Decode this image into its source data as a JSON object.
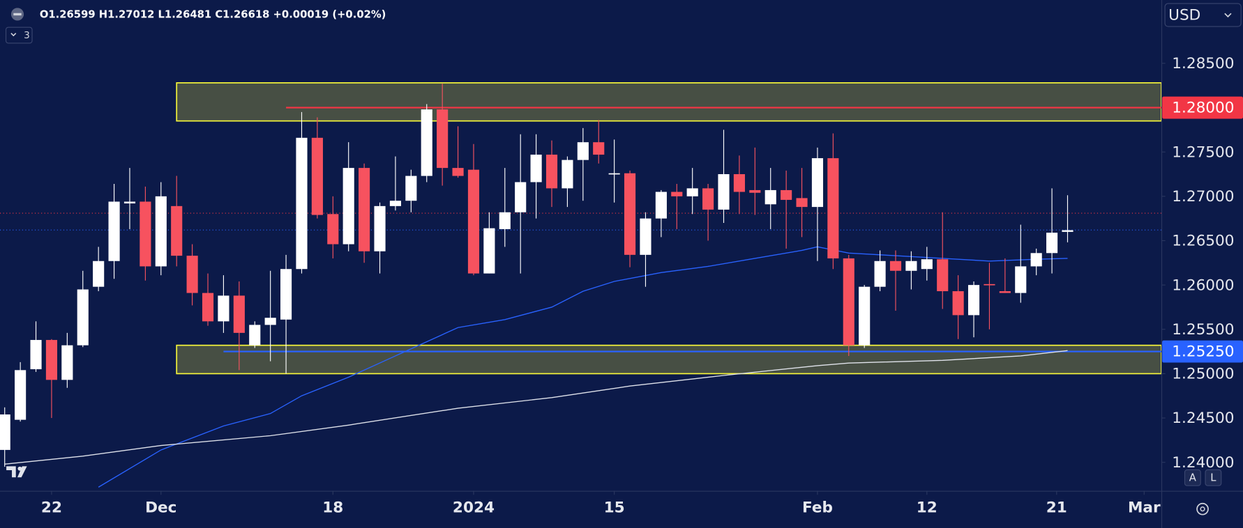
{
  "ui": {
    "header": "O1.26599 H1.27012 L1.26481 C1.26618 +0.00019 (+0.02%)",
    "indicators": "3",
    "currency": "USD",
    "buttons": [
      "A",
      "L"
    ]
  },
  "chart_data": {
    "type": "candlestick",
    "up_color": "#ffffff",
    "down_color": "#f7525f",
    "x": [
      0,
      1,
      2,
      3,
      4,
      5,
      6,
      7,
      8,
      9,
      10,
      11,
      12,
      13,
      14,
      15,
      16,
      17,
      18,
      19,
      20,
      21,
      22,
      23,
      24,
      25,
      26,
      27,
      28,
      29,
      30,
      31,
      32,
      33,
      34,
      35,
      36,
      37,
      38,
      39,
      40,
      41,
      42,
      43,
      44,
      45,
      46,
      47,
      48,
      49,
      50,
      51,
      52,
      53,
      54,
      55,
      56,
      57,
      58,
      59,
      60,
      61,
      62,
      63,
      64,
      65,
      66,
      67,
      68
    ],
    "open": [
      1.2414,
      1.2448,
      1.2505,
      1.2538,
      1.2493,
      1.2532,
      1.2598,
      1.2627,
      1.2692,
      1.2694,
      1.2621,
      1.2689,
      1.2633,
      1.2591,
      1.2559,
      1.2588,
      1.2532,
      1.2555,
      1.2561,
      1.2618,
      1.2766,
      1.268,
      1.2646,
      1.2732,
      1.2638,
      1.2689,
      1.2695,
      1.2723,
      1.2798,
      1.2732,
      1.273,
      1.2613,
      1.2663,
      1.2682,
      1.2716,
      1.2747,
      1.2709,
      1.2741,
      1.2761,
      1.2725,
      1.2726,
      1.2634,
      1.2675,
      1.2705,
      1.27,
      1.2709,
      1.2685,
      1.2725,
      1.2707,
      1.2691,
      1.2707,
      1.2698,
      1.2688,
      1.2743,
      1.263,
      1.2532,
      1.2598,
      1.2627,
      1.2616,
      1.2618,
      1.2629,
      1.2593,
      1.2566,
      1.2601,
      1.2593,
      1.2591,
      1.2621,
      1.2636,
      1.26599
    ],
    "high": [
      1.2462,
      1.2513,
      1.2559,
      1.2539,
      1.2546,
      1.2616,
      1.2643,
      1.2714,
      1.2732,
      1.2711,
      1.2716,
      1.2723,
      1.2646,
      1.2613,
      1.2611,
      1.2604,
      1.2559,
      1.2616,
      1.2634,
      1.2795,
      1.2789,
      1.27,
      1.2761,
      1.2737,
      1.2693,
      1.2745,
      1.273,
      1.2804,
      1.2827,
      1.2779,
      1.2759,
      1.2682,
      1.2732,
      1.277,
      1.277,
      1.2763,
      1.2745,
      1.2777,
      1.2786,
      1.2764,
      1.2729,
      1.2682,
      1.2707,
      1.2714,
      1.2732,
      1.2714,
      1.2775,
      1.2746,
      1.2755,
      1.2732,
      1.2729,
      1.2732,
      1.2755,
      1.2771,
      1.2634,
      1.26,
      1.2639,
      1.2639,
      1.2638,
      1.2643,
      1.2682,
      1.2611,
      1.2604,
      1.2625,
      1.263,
      1.2668,
      1.2641,
      1.2709,
      1.27012
    ],
    "low": [
      1.2395,
      1.2446,
      1.2502,
      1.245,
      1.2484,
      1.253,
      1.2593,
      1.2607,
      1.2663,
      1.2605,
      1.2611,
      1.2621,
      1.2577,
      1.2554,
      1.2546,
      1.2504,
      1.2529,
      1.2514,
      1.25,
      1.2613,
      1.2675,
      1.263,
      1.2638,
      1.2625,
      1.2613,
      1.2684,
      1.2682,
      1.2716,
      1.2712,
      1.2721,
      1.2611,
      1.2613,
      1.2643,
      1.2613,
      1.2675,
      1.2688,
      1.2688,
      1.2695,
      1.2737,
      1.2693,
      1.262,
      1.2598,
      1.2654,
      1.2663,
      1.268,
      1.265,
      1.267,
      1.268,
      1.2679,
      1.2663,
      1.2641,
      1.2654,
      1.2627,
      1.2618,
      1.252,
      1.2529,
      1.2593,
      1.2571,
      1.2595,
      1.2605,
      1.2573,
      1.2539,
      1.2541,
      1.255,
      1.2591,
      1.258,
      1.2611,
      1.2613,
      1.26481
    ],
    "close": [
      1.2454,
      1.2504,
      1.2538,
      1.2493,
      1.2532,
      1.2595,
      1.2627,
      1.2694,
      1.2694,
      1.2621,
      1.27,
      1.2633,
      1.2591,
      1.2559,
      1.2588,
      1.2546,
      1.2555,
      1.2563,
      1.2618,
      1.2766,
      1.2679,
      1.2646,
      1.2732,
      1.2638,
      1.2689,
      1.2695,
      1.2723,
      1.2798,
      1.2732,
      1.2723,
      1.2613,
      1.2664,
      1.2682,
      1.2716,
      1.2747,
      1.2709,
      1.2741,
      1.2761,
      1.2747,
      1.2726,
      1.2634,
      1.2675,
      1.2705,
      1.27,
      1.2709,
      1.2685,
      1.2725,
      1.2705,
      1.2704,
      1.2707,
      1.2696,
      1.2688,
      1.2743,
      1.263,
      1.2532,
      1.2598,
      1.2627,
      1.2616,
      1.2627,
      1.2629,
      1.2593,
      1.2566,
      1.26,
      1.26,
      1.2591,
      1.2621,
      1.2636,
      1.2659,
      1.26618
    ],
    "lines": [
      {
        "color": "#2962ff",
        "x": [
          6,
          10,
          14,
          17,
          19,
          22,
          25,
          27,
          29,
          32,
          35,
          37,
          39,
          42,
          45,
          48,
          51,
          52,
          54,
          57,
          60,
          63,
          66,
          68
        ],
        "values": [
          1.2372,
          1.2414,
          1.2441,
          1.2455,
          1.2475,
          1.2496,
          1.252,
          1.2536,
          1.2552,
          1.2561,
          1.2575,
          1.2593,
          1.2604,
          1.2614,
          1.2621,
          1.263,
          1.2639,
          1.2643,
          1.2636,
          1.2633,
          1.263,
          1.2627,
          1.2629,
          1.263
        ]
      },
      {
        "color": "#e0e3eb",
        "x": [
          0,
          5,
          10,
          17,
          22,
          29,
          35,
          40,
          46,
          52,
          54,
          60,
          65,
          68
        ],
        "values": [
          1.2398,
          1.2407,
          1.2419,
          1.243,
          1.2442,
          1.2461,
          1.2473,
          1.2486,
          1.2498,
          1.2509,
          1.2512,
          1.2515,
          1.252,
          1.2526
        ]
      }
    ],
    "zones": [
      {
        "x_start": 11,
        "range": [
          1.2785,
          1.2828
        ]
      },
      {
        "x_start": 11,
        "range": [
          1.25,
          1.2532
        ]
      }
    ],
    "zone_fill": "#474f44",
    "zone_border": "#f5f53a",
    "hlines": [
      {
        "value": 1.28,
        "label": "1.28000",
        "color": "#f23645",
        "x_start": 18
      },
      {
        "value": 1.2525,
        "label": "1.25250",
        "color": "#2962ff",
        "x_start": 14
      }
    ],
    "price_lines": [
      {
        "value": 1.2681,
        "color": "#f23645"
      },
      {
        "value": 1.2662,
        "color": "#2962ff"
      }
    ],
    "xlim": [
      -0.3,
      74
    ],
    "xticks": [
      {
        "value": 3,
        "label": "22"
      },
      {
        "value": 10,
        "label": "Dec"
      },
      {
        "value": 21,
        "label": "18"
      },
      {
        "value": 30,
        "label": "2024"
      },
      {
        "value": 39,
        "label": "15"
      },
      {
        "value": 52,
        "label": "Feb"
      },
      {
        "value": 59,
        "label": "12"
      },
      {
        "value": 67.3,
        "label": "21"
      },
      {
        "value": 72.9,
        "label": "Mar"
      }
    ],
    "ylim": [
      1.23679,
      1.29214
    ],
    "yticks": [
      {
        "value": 1.24,
        "label": "1.24000"
      },
      {
        "value": 1.245,
        "label": "1.24500"
      },
      {
        "value": 1.25,
        "label": "1.25000"
      },
      {
        "value": 1.255,
        "label": "1.25500"
      },
      {
        "value": 1.26,
        "label": "1.26000"
      },
      {
        "value": 1.265,
        "label": "1.26500"
      },
      {
        "value": 1.27,
        "label": "1.27000"
      },
      {
        "value": 1.275,
        "label": "1.27500"
      },
      {
        "value": 1.285,
        "label": "1.28500"
      }
    ]
  }
}
